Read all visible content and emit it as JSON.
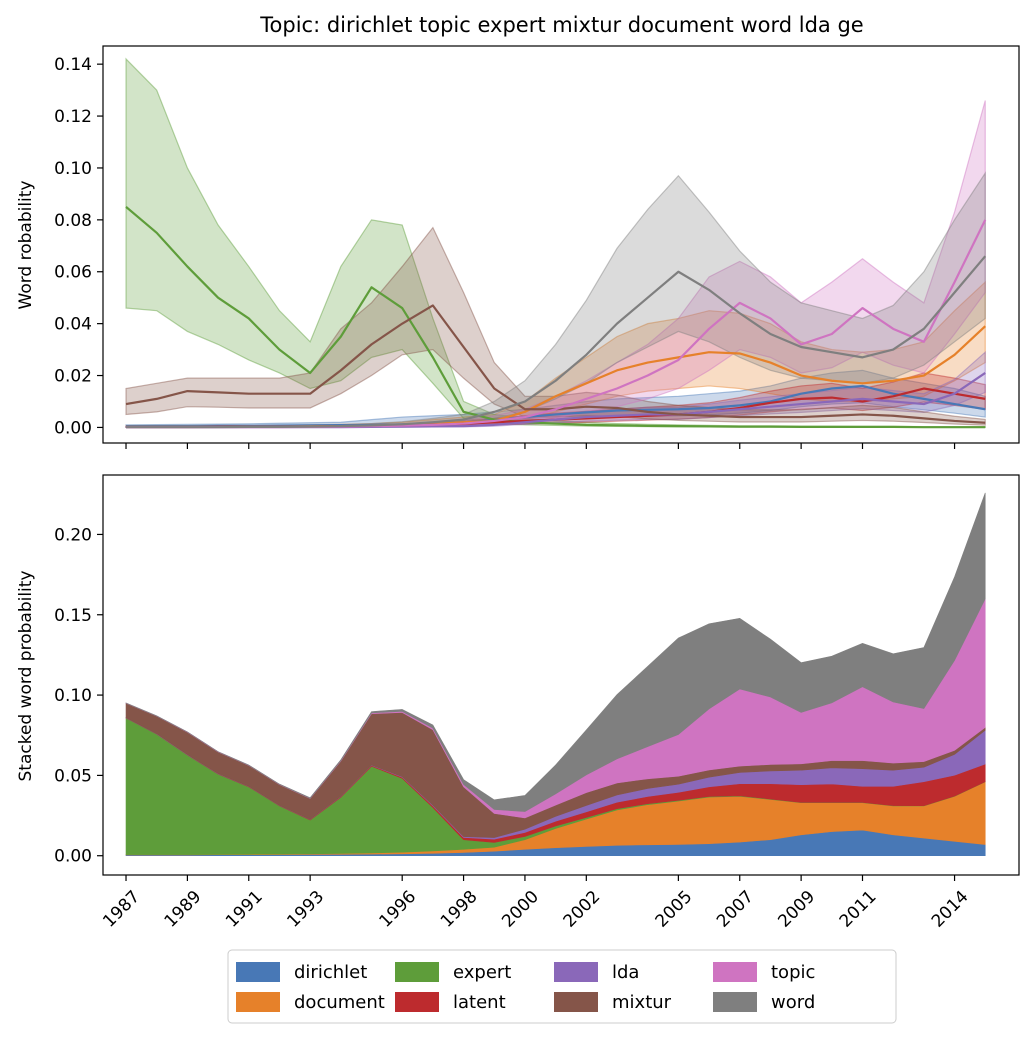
{
  "title": "Topic: dirichlet topic expert mixtur document word lda ge",
  "colors": {
    "dirichlet": "#4878b6",
    "document": "#e6812a",
    "expert": "#5e9d3a",
    "latent": "#bd2b2e",
    "lda": "#8a68b9",
    "mixtur": "#855549",
    "topic": "#cf74c1",
    "word": "#7f7f7f"
  },
  "chart_data": [
    {
      "type": "line",
      "ylabel": "Word robability",
      "ylim": [
        -0.006,
        0.147
      ],
      "yticks": [
        "0.00",
        "0.02",
        "0.04",
        "0.06",
        "0.08",
        "0.10",
        "0.12",
        "0.14"
      ],
      "x": [
        1987,
        1988,
        1989,
        1990,
        1991,
        1992,
        1993,
        1994,
        1995,
        1996,
        1997,
        1998,
        1999,
        2000,
        2001,
        2002,
        2003,
        2004,
        2005,
        2006,
        2007,
        2008,
        2009,
        2010,
        2011,
        2012,
        2013,
        2014,
        2015
      ],
      "xlim": [
        1986.25,
        2016.1
      ],
      "band": "shaded uncertainty band around each line",
      "series": [
        {
          "name": "dirichlet",
          "values": [
            0.0005,
            0.0005,
            0.0005,
            0.0006,
            0.0006,
            0.0007,
            0.0008,
            0.0009,
            0.001,
            0.0012,
            0.0015,
            0.002,
            0.0028,
            0.004,
            0.005,
            0.0058,
            0.0065,
            0.0068,
            0.007,
            0.0075,
            0.0085,
            0.01,
            0.013,
            0.015,
            0.016,
            0.013,
            0.011,
            0.009,
            0.007
          ],
          "lower": [
            0.0002,
            0.0002,
            0.0002,
            0.0003,
            0.0003,
            0.0003,
            0.0004,
            0.0004,
            0.0005,
            0.0006,
            0.0008,
            0.001,
            0.0014,
            0.0022,
            0.003,
            0.0035,
            0.004,
            0.0043,
            0.0045,
            0.0048,
            0.0055,
            0.0065,
            0.008,
            0.009,
            0.0095,
            0.008,
            0.0068,
            0.0055,
            0.004
          ],
          "upper": [
            0.001,
            0.0011,
            0.0012,
            0.0013,
            0.0014,
            0.0016,
            0.0018,
            0.002,
            0.003,
            0.004,
            0.0045,
            0.005,
            0.006,
            0.007,
            0.0085,
            0.01,
            0.011,
            0.0115,
            0.012,
            0.013,
            0.014,
            0.016,
            0.019,
            0.021,
            0.022,
            0.019,
            0.017,
            0.015,
            0.012
          ]
        },
        {
          "name": "document",
          "values": [
            0.0002,
            0.0002,
            0.0002,
            0.0002,
            0.0003,
            0.0003,
            0.0004,
            0.0005,
            0.0007,
            0.001,
            0.0015,
            0.002,
            0.0025,
            0.006,
            0.012,
            0.017,
            0.022,
            0.025,
            0.027,
            0.029,
            0.0285,
            0.025,
            0.02,
            0.018,
            0.017,
            0.018,
            0.02,
            0.028,
            0.039
          ],
          "lower": [
            0.0001,
            0.0001,
            0.0001,
            0.0001,
            0.0001,
            0.0001,
            0.0002,
            0.0002,
            0.0003,
            0.0005,
            0.0008,
            0.001,
            0.0012,
            0.003,
            0.006,
            0.009,
            0.012,
            0.014,
            0.015,
            0.016,
            0.015,
            0.013,
            0.011,
            0.01,
            0.01,
            0.011,
            0.012,
            0.018,
            0.025
          ],
          "upper": [
            0.0005,
            0.0005,
            0.0005,
            0.0006,
            0.0007,
            0.0008,
            0.001,
            0.0012,
            0.0015,
            0.002,
            0.003,
            0.004,
            0.005,
            0.01,
            0.019,
            0.027,
            0.035,
            0.04,
            0.042,
            0.045,
            0.044,
            0.04,
            0.033,
            0.03,
            0.029,
            0.03,
            0.033,
            0.045,
            0.056
          ]
        },
        {
          "name": "expert",
          "values": [
            0.085,
            0.075,
            0.062,
            0.05,
            0.042,
            0.03,
            0.021,
            0.035,
            0.054,
            0.046,
            0.027,
            0.006,
            0.003,
            0.002,
            0.0015,
            0.001,
            0.0008,
            0.0006,
            0.0005,
            0.0004,
            0.0003,
            0.0003,
            0.0002,
            0.0002,
            0.0002,
            0.0002,
            0.0001,
            0.0001,
            0.0001
          ],
          "lower": [
            0.046,
            0.045,
            0.037,
            0.032,
            0.026,
            0.021,
            0.015,
            0.018,
            0.027,
            0.03,
            0.017,
            0.0035,
            0.0015,
            0.001,
            0.0008,
            0.0005,
            0.0004,
            0.0003,
            0.0002,
            0.0002,
            0.0001,
            0.0001,
            0.0001,
            0.0001,
            0.0001,
            0.0001,
            0.0,
            0.0,
            0.0
          ],
          "upper": [
            0.142,
            0.13,
            0.1,
            0.078,
            0.062,
            0.045,
            0.033,
            0.062,
            0.08,
            0.078,
            0.042,
            0.01,
            0.005,
            0.0035,
            0.0025,
            0.002,
            0.0015,
            0.0012,
            0.001,
            0.0008,
            0.0006,
            0.0006,
            0.0005,
            0.0005,
            0.0004,
            0.0004,
            0.0003,
            0.0003,
            0.0003
          ]
        },
        {
          "name": "latent",
          "values": [
            0.0001,
            0.0001,
            0.0001,
            0.0002,
            0.0002,
            0.0002,
            0.0003,
            0.0004,
            0.0005,
            0.0007,
            0.001,
            0.0014,
            0.002,
            0.0025,
            0.003,
            0.0035,
            0.004,
            0.0045,
            0.005,
            0.006,
            0.0075,
            0.0095,
            0.011,
            0.0115,
            0.01,
            0.012,
            0.015,
            0.013,
            0.011
          ],
          "lower": [
            0.0,
            0.0,
            0.0,
            0.0001,
            0.0001,
            0.0001,
            0.0001,
            0.0002,
            0.0002,
            0.0003,
            0.0005,
            0.0007,
            0.001,
            0.0013,
            0.0016,
            0.002,
            0.0024,
            0.0028,
            0.0032,
            0.0038,
            0.0048,
            0.006,
            0.007,
            0.0075,
            0.0065,
            0.0078,
            0.0098,
            0.0085,
            0.007
          ],
          "upper": [
            0.0004,
            0.0004,
            0.0004,
            0.0005,
            0.0005,
            0.0006,
            0.0007,
            0.0008,
            0.001,
            0.0013,
            0.0018,
            0.0025,
            0.0035,
            0.0045,
            0.0055,
            0.0062,
            0.007,
            0.0078,
            0.0085,
            0.0095,
            0.0115,
            0.014,
            0.016,
            0.017,
            0.015,
            0.0175,
            0.021,
            0.019,
            0.0165
          ]
        },
        {
          "name": "lda",
          "values": [
            0.0001,
            0.0001,
            0.0001,
            0.0001,
            0.0001,
            0.0001,
            0.0001,
            0.0001,
            0.0002,
            0.0003,
            0.0004,
            0.0005,
            0.001,
            0.002,
            0.003,
            0.004,
            0.0045,
            0.005,
            0.005,
            0.006,
            0.007,
            0.008,
            0.009,
            0.01,
            0.011,
            0.01,
            0.009,
            0.013,
            0.021
          ],
          "lower": [
            0.0,
            0.0,
            0.0,
            0.0,
            0.0,
            0.0,
            0.0,
            0.0,
            0.0001,
            0.0001,
            0.0002,
            0.0002,
            0.0005,
            0.0012,
            0.0018,
            0.0024,
            0.0028,
            0.0031,
            0.0031,
            0.0038,
            0.0045,
            0.0052,
            0.0058,
            0.0065,
            0.0072,
            0.0065,
            0.0058,
            0.0085,
            0.0135
          ],
          "upper": [
            0.0003,
            0.0003,
            0.0003,
            0.0003,
            0.0003,
            0.0003,
            0.0003,
            0.0003,
            0.0005,
            0.0007,
            0.0009,
            0.0011,
            0.002,
            0.0035,
            0.005,
            0.0062,
            0.007,
            0.0078,
            0.0078,
            0.009,
            0.0105,
            0.0118,
            0.013,
            0.0142,
            0.0155,
            0.0142,
            0.013,
            0.0185,
            0.029
          ]
        },
        {
          "name": "mixtur",
          "values": [
            0.009,
            0.011,
            0.014,
            0.0135,
            0.013,
            0.013,
            0.013,
            0.022,
            0.032,
            0.04,
            0.047,
            0.031,
            0.015,
            0.007,
            0.007,
            0.008,
            0.0075,
            0.006,
            0.005,
            0.0045,
            0.004,
            0.004,
            0.004,
            0.0045,
            0.005,
            0.0045,
            0.0035,
            0.0025,
            0.0018
          ],
          "lower": [
            0.005,
            0.006,
            0.008,
            0.0078,
            0.0075,
            0.0075,
            0.0075,
            0.013,
            0.02,
            0.028,
            0.03,
            0.019,
            0.009,
            0.004,
            0.004,
            0.0045,
            0.0042,
            0.0033,
            0.0027,
            0.0024,
            0.0021,
            0.0021,
            0.0021,
            0.0024,
            0.0027,
            0.0024,
            0.0019,
            0.0013,
            0.0009
          ],
          "upper": [
            0.015,
            0.017,
            0.019,
            0.019,
            0.019,
            0.019,
            0.021,
            0.038,
            0.048,
            0.062,
            0.077,
            0.052,
            0.025,
            0.012,
            0.012,
            0.0135,
            0.0125,
            0.01,
            0.0085,
            0.0077,
            0.0068,
            0.0068,
            0.0068,
            0.0077,
            0.0085,
            0.0077,
            0.006,
            0.0043,
            0.0031
          ]
        },
        {
          "name": "topic",
          "values": [
            0.0001,
            0.0001,
            0.0001,
            0.0001,
            0.0001,
            0.0001,
            0.0002,
            0.0003,
            0.0005,
            0.0007,
            0.001,
            0.0015,
            0.0025,
            0.004,
            0.007,
            0.011,
            0.015,
            0.02,
            0.026,
            0.038,
            0.048,
            0.042,
            0.032,
            0.036,
            0.046,
            0.038,
            0.033,
            0.056,
            0.08
          ],
          "lower": [
            0.0,
            0.0,
            0.0,
            0.0,
            0.0,
            0.0,
            0.0001,
            0.0001,
            0.0002,
            0.0003,
            0.0005,
            0.0008,
            0.0013,
            0.002,
            0.0035,
            0.006,
            0.008,
            0.011,
            0.015,
            0.022,
            0.03,
            0.027,
            0.021,
            0.023,
            0.029,
            0.024,
            0.021,
            0.036,
            0.052
          ],
          "upper": [
            0.0003,
            0.0003,
            0.0003,
            0.0003,
            0.0003,
            0.0003,
            0.0005,
            0.0007,
            0.001,
            0.0014,
            0.002,
            0.0028,
            0.0045,
            0.007,
            0.012,
            0.018,
            0.025,
            0.032,
            0.042,
            0.058,
            0.064,
            0.058,
            0.048,
            0.056,
            0.065,
            0.056,
            0.048,
            0.083,
            0.126
          ]
        },
        {
          "name": "word",
          "values": [
            0.0001,
            0.0001,
            0.0001,
            0.0001,
            0.0002,
            0.0002,
            0.0003,
            0.0005,
            0.0008,
            0.0012,
            0.002,
            0.003,
            0.006,
            0.01,
            0.018,
            0.028,
            0.04,
            0.05,
            0.06,
            0.053,
            0.044,
            0.036,
            0.031,
            0.029,
            0.027,
            0.03,
            0.038,
            0.052,
            0.066
          ],
          "lower": [
            0.0,
            0.0,
            0.0,
            0.0,
            0.0001,
            0.0001,
            0.0001,
            0.0002,
            0.0004,
            0.0006,
            0.001,
            0.0015,
            0.0035,
            0.006,
            0.011,
            0.017,
            0.025,
            0.031,
            0.037,
            0.033,
            0.027,
            0.022,
            0.019,
            0.018,
            0.017,
            0.019,
            0.024,
            0.033,
            0.042
          ],
          "upper": [
            0.0003,
            0.0003,
            0.0003,
            0.0003,
            0.0005,
            0.0005,
            0.0007,
            0.001,
            0.0015,
            0.0022,
            0.0035,
            0.005,
            0.01,
            0.018,
            0.032,
            0.049,
            0.069,
            0.084,
            0.097,
            0.083,
            0.068,
            0.056,
            0.048,
            0.045,
            0.042,
            0.047,
            0.06,
            0.08,
            0.098
          ]
        }
      ]
    },
    {
      "type": "area",
      "stacked": true,
      "ylabel": "Stacked word probability",
      "ylim": [
        -0.012,
        0.237
      ],
      "yticks": [
        "0.00",
        "0.05",
        "0.10",
        "0.15",
        "0.20"
      ],
      "x": [
        1987,
        1988,
        1989,
        1990,
        1991,
        1992,
        1993,
        1994,
        1995,
        1996,
        1997,
        1998,
        1999,
        2000,
        2001,
        2002,
        2003,
        2004,
        2005,
        2006,
        2007,
        2008,
        2009,
        2010,
        2011,
        2012,
        2013,
        2014,
        2015
      ],
      "xlim": [
        1986.25,
        2016.1
      ],
      "xticks": [
        "1987",
        "1989",
        "1991",
        "1993",
        "1996",
        "1998",
        "2000",
        "2002",
        "2005",
        "2007",
        "2009",
        "2011",
        "2014"
      ],
      "stack_order": [
        "dirichlet",
        "document",
        "expert",
        "latent",
        "lda",
        "mixtur",
        "topic",
        "word"
      ]
    }
  ],
  "legend": {
    "placement": "bottom-center",
    "items": [
      "dirichlet",
      "document",
      "expert",
      "latent",
      "lda",
      "mixtur",
      "topic",
      "word"
    ]
  }
}
